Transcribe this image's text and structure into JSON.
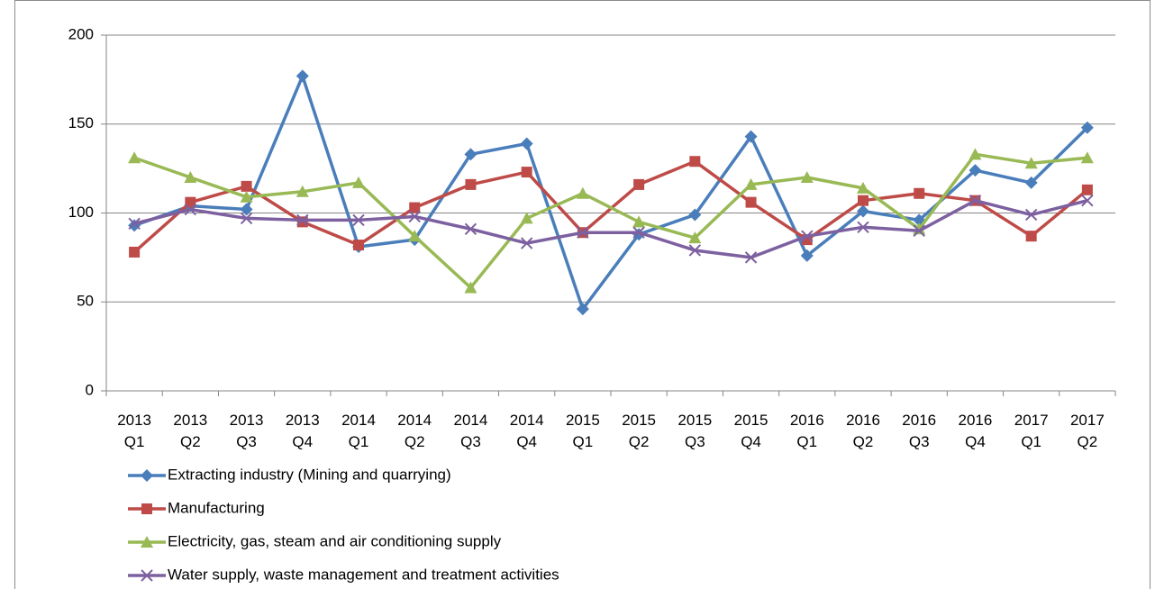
{
  "chart_data": {
    "type": "line",
    "categories": [
      "2013 Q1",
      "2013 Q2",
      "2013 Q3",
      "2013 Q4",
      "2014 Q1",
      "2014 Q2",
      "2014 Q3",
      "2014 Q4",
      "2015 Q1",
      "2015 Q2",
      "2015 Q3",
      "2015 Q4",
      "2016 Q1",
      "2016 Q2",
      "2016 Q3",
      "2016 Q4",
      "2017 Q1",
      "2017 Q2"
    ],
    "series": [
      {
        "name": "Extracting industry (Mining and quarrying)",
        "color": "#4a7ebb",
        "marker": "diamond",
        "values": [
          93,
          104,
          102,
          177,
          81,
          85,
          133,
          139,
          46,
          88,
          99,
          143,
          76,
          101,
          96,
          124,
          117,
          148
        ]
      },
      {
        "name": "Manufacturing",
        "color": "#be4b48",
        "marker": "square",
        "values": [
          78,
          106,
          115,
          95,
          82,
          103,
          116,
          123,
          89,
          116,
          129,
          106,
          85,
          107,
          111,
          107,
          87,
          113
        ]
      },
      {
        "name": "Electricity, gas, steam and air conditioning supply",
        "color": "#98b954",
        "marker": "triangle",
        "values": [
          131,
          120,
          109,
          112,
          117,
          87,
          58,
          97,
          111,
          95,
          86,
          116,
          120,
          114,
          91,
          133,
          128,
          131
        ]
      },
      {
        "name": "Water supply, waste management and treatment activities",
        "color": "#7d60a0",
        "marker": "x",
        "values": [
          94,
          102,
          97,
          96,
          96,
          98,
          91,
          83,
          89,
          89,
          79,
          75,
          87,
          92,
          90,
          107,
          99,
          107
        ]
      }
    ],
    "ylim": [
      0,
      200
    ],
    "yticks": [
      0,
      50,
      100,
      150,
      200
    ],
    "grid": true
  }
}
